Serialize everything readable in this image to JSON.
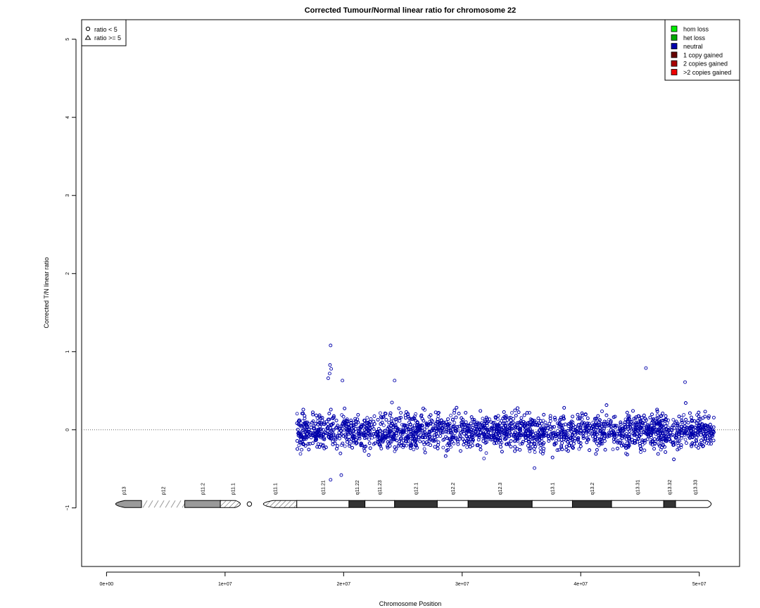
{
  "chart_data": {
    "type": "scatter",
    "title": "Corrected Tumour/Normal linear ratio for chromosome  22",
    "xlabel": "Chromosome Position",
    "ylabel": "Corrected T/N linear ratio",
    "xlim": [
      -2100000,
      53400000
    ],
    "ylim": [
      -1.75,
      5.25
    ],
    "x_ticks": [
      0,
      10000000,
      20000000,
      30000000,
      40000000,
      50000000
    ],
    "x_tick_labels": [
      "0e+00",
      "1e+07",
      "2e+07",
      "3e+07",
      "4e+07",
      "5e+07"
    ],
    "y_ticks": [
      -1,
      0,
      1,
      2,
      3,
      4,
      5
    ],
    "y_tick_labels": [
      "−1",
      "0",
      "1",
      "2",
      "3",
      "4",
      "5"
    ],
    "reference_line_y": 0,
    "grid": false,
    "shape_legend": {
      "position": "top-left",
      "items": [
        {
          "symbol": "circle",
          "label": "ratio < 5"
        },
        {
          "symbol": "triangle",
          "label": "ratio >= 5"
        }
      ]
    },
    "color_legend": {
      "position": "top-right",
      "items": [
        {
          "label": "hom loss",
          "color": "#00ee00"
        },
        {
          "label": "het loss",
          "color": "#00aa00"
        },
        {
          "label": "neutral",
          "color": "#0000aa"
        },
        {
          "label": "1 copy gained",
          "color": "#660000"
        },
        {
          "label": "2 copies gained",
          "color": "#aa0000"
        },
        {
          "label": ">2 copies gained",
          "color": "#ee0000"
        }
      ]
    },
    "series": [
      {
        "name": "neutral",
        "color": "#0000aa",
        "symbol": "circle",
        "x_range": [
          16050000,
          51240000
        ],
        "typical_y_range": [
          -0.35,
          0.35
        ],
        "notable_points": [
          {
            "x": 18900000,
            "y": 1.08
          },
          {
            "x": 18850000,
            "y": 0.83
          },
          {
            "x": 18950000,
            "y": 0.78
          },
          {
            "x": 18820000,
            "y": 0.72
          },
          {
            "x": 18700000,
            "y": 0.66
          },
          {
            "x": 19900000,
            "y": 0.63
          },
          {
            "x": 24300000,
            "y": 0.63
          },
          {
            "x": 45500000,
            "y": 0.79
          },
          {
            "x": 48800000,
            "y": 0.61
          },
          {
            "x": 18900000,
            "y": -0.64
          },
          {
            "x": 19800000,
            "y": -0.58
          },
          {
            "x": 36100000,
            "y": -0.49
          }
        ]
      }
    ],
    "ideogram": {
      "y": -0.95,
      "bands": [
        {
          "name": "p13",
          "start": 0,
          "end": 2950000,
          "type": "gpos50-tip"
        },
        {
          "name": "p12",
          "start": 2950000,
          "end": 6600000,
          "type": "stalk"
        },
        {
          "name": "p11.2",
          "start": 6600000,
          "end": 9600000,
          "type": "gpos50"
        },
        {
          "name": "p11.1",
          "start": 9600000,
          "end": 11700000,
          "type": "hatched"
        },
        {
          "name": "q11.1",
          "start": 12400000,
          "end": 16050000,
          "type": "hatched-tip"
        },
        {
          "name": "q11.21",
          "start": 16050000,
          "end": 20450000,
          "type": "gneg"
        },
        {
          "name": "q11.22",
          "start": 20450000,
          "end": 21800000,
          "type": "gpos"
        },
        {
          "name": "q11.23",
          "start": 21800000,
          "end": 24300000,
          "type": "gneg"
        },
        {
          "name": "q12.1",
          "start": 24300000,
          "end": 27900000,
          "type": "gpos"
        },
        {
          "name": "q12.2",
          "start": 27900000,
          "end": 30500000,
          "type": "gneg"
        },
        {
          "name": "q12.3",
          "start": 30500000,
          "end": 35900000,
          "type": "gpos"
        },
        {
          "name": "q13.1",
          "start": 35900000,
          "end": 39300000,
          "type": "gneg"
        },
        {
          "name": "q13.2",
          "start": 39300000,
          "end": 42600000,
          "type": "gpos"
        },
        {
          "name": "q13.31",
          "start": 42600000,
          "end": 47000000,
          "type": "gneg"
        },
        {
          "name": "q13.32",
          "start": 47000000,
          "end": 48000000,
          "type": "gpos"
        },
        {
          "name": "q13.33",
          "start": 48000000,
          "end": 51300000,
          "type": "gneg-tip"
        }
      ]
    }
  }
}
